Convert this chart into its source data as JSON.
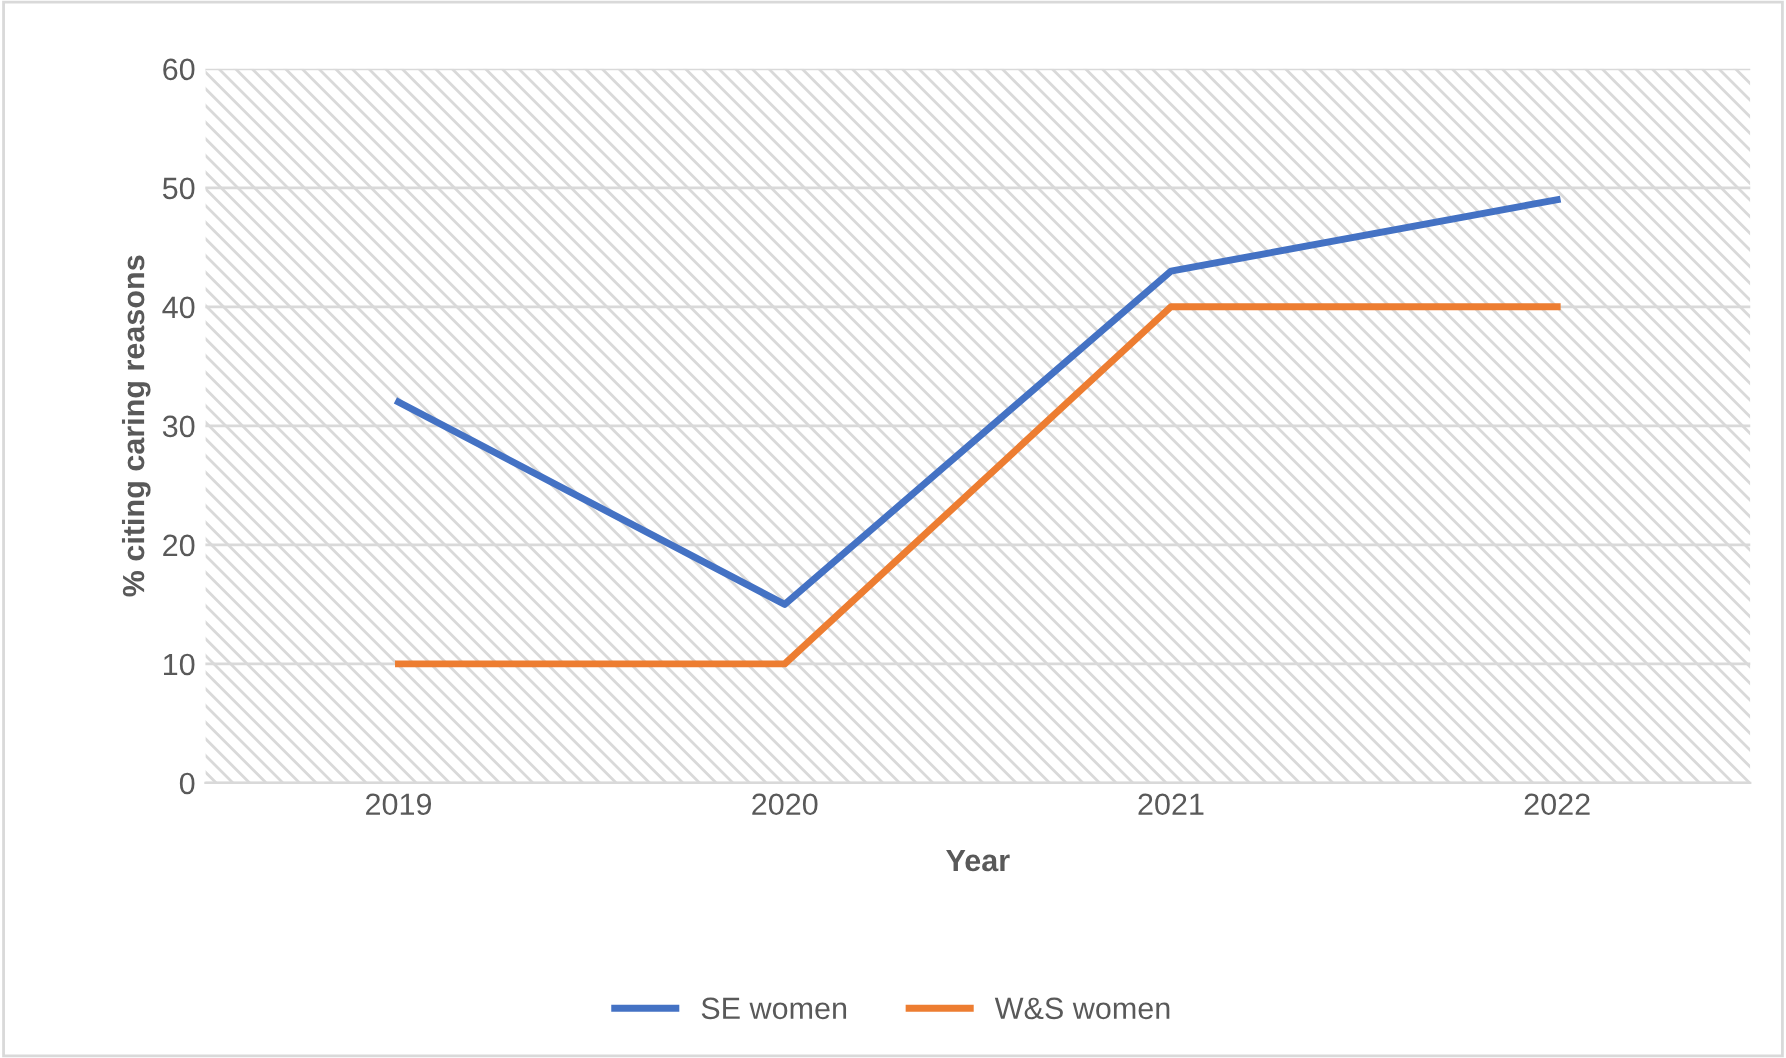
{
  "chart_data": {
    "type": "line",
    "xlabel": "Year",
    "ylabel": "% citing caring reasons",
    "categories": [
      "2019",
      "2020",
      "2021",
      "2022"
    ],
    "series": [
      {
        "name": "SE women",
        "color": "#4472c4",
        "values": [
          32,
          15,
          43,
          49
        ]
      },
      {
        "name": "W&S women",
        "color": "#ed7d31",
        "values": [
          10,
          10,
          40,
          40
        ]
      }
    ],
    "ylim": [
      0,
      60
    ],
    "yticks": [
      0,
      10,
      20,
      30,
      40,
      50,
      60
    ],
    "grid": "y",
    "legend": "bottom",
    "marker": "none",
    "line_style": "solid"
  }
}
